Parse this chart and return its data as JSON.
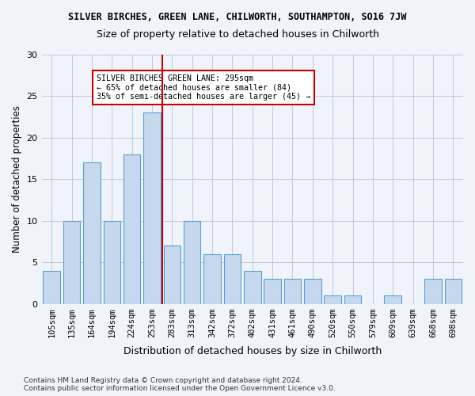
{
  "title1": "SILVER BIRCHES, GREEN LANE, CHILWORTH, SOUTHAMPTON, SO16 7JW",
  "title2": "Size of property relative to detached houses in Chilworth",
  "xlabel": "Distribution of detached houses by size in Chilworth",
  "ylabel": "Number of detached properties",
  "categories": [
    "105sqm",
    "135sqm",
    "164sqm",
    "194sqm",
    "224sqm",
    "253sqm",
    "283sqm",
    "313sqm",
    "342sqm",
    "372sqm",
    "402sqm",
    "431sqm",
    "461sqm",
    "490sqm",
    "520sqm",
    "550sqm",
    "579sqm",
    "609sqm",
    "639sqm",
    "668sqm",
    "698sqm"
  ],
  "values": [
    4,
    10,
    17,
    10,
    18,
    23,
    7,
    10,
    6,
    6,
    4,
    3,
    3,
    3,
    1,
    1,
    0,
    1,
    0,
    3,
    3
  ],
  "bar_color": "#c5d8ed",
  "bar_edge_color": "#5a9fd4",
  "vline_x": 5.5,
  "vline_color": "#cc0000",
  "annotation_text": "SILVER BIRCHES GREEN LANE: 295sqm\n← 65% of detached houses are smaller (84)\n35% of semi-detached houses are larger (45) →",
  "annotation_box_color": "#ffffff",
  "annotation_box_edge_color": "#cc0000",
  "ylim": [
    0,
    30
  ],
  "yticks": [
    0,
    5,
    10,
    15,
    20,
    25,
    30
  ],
  "footer": "Contains HM Land Registry data © Crown copyright and database right 2024.\nContains public sector information licensed under the Open Government Licence v3.0.",
  "bg_color": "#f0f4fa"
}
